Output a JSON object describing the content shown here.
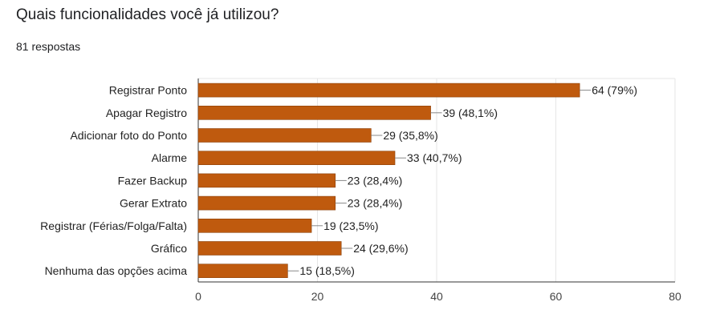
{
  "header": {
    "title": "Quais funcionalidades você já utilizou?",
    "subtitle": "81 respostas"
  },
  "chart_data": {
    "type": "bar",
    "orientation": "horizontal",
    "title": "",
    "xlabel": "",
    "ylabel": "",
    "categories": [
      "Registrar Ponto",
      "Apagar Registro",
      "Adicionar foto do Ponto",
      "Alarme",
      "Fazer Backup",
      "Gerar Extrato",
      "Registrar (Férias/Folga/Falta)",
      "Gráfico",
      "Nenhuma das opções acima"
    ],
    "values": [
      64,
      39,
      29,
      33,
      23,
      23,
      19,
      24,
      15
    ],
    "data_labels": [
      "64 (79%)",
      "39 (48,1%)",
      "29 (35,8%)",
      "33 (40,7%)",
      "23 (28,4%)",
      "23 (28,4%)",
      "19 (23,5%)",
      "24 (29,6%)",
      "15 (18,5%)"
    ],
    "xlim": [
      0,
      80
    ],
    "xticks": [
      0,
      20,
      40,
      60,
      80
    ],
    "grid": true,
    "legend": "none",
    "bar_color": "#bf5a0e"
  }
}
